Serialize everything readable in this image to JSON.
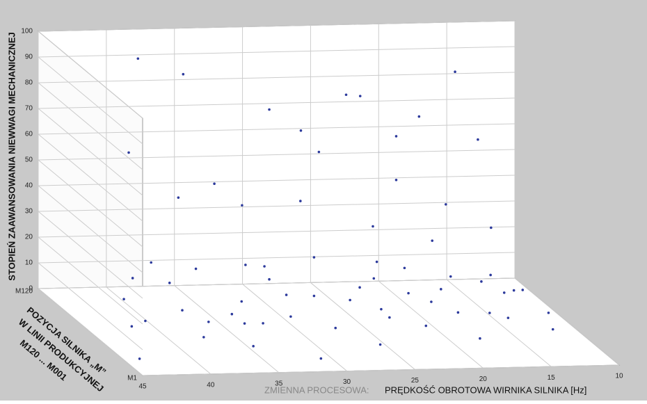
{
  "chart_data": {
    "type": "scatter3d",
    "zlabel": "STOPIEŃ ZAAWANSOWANIA NIEWWAGI MECHANICZNEJ",
    "ylabel": [
      "POZYCJA SILNIKA „M”",
      "W LINII PRODUKCYJNEJ",
      "M120 ... M001"
    ],
    "xlabel_prefix": "ZMIENNA PROCESOWA:",
    "xlabel": "PRĘDKOŚĆ OBROTOWA WIRNIKA SILNIKA [Hz]",
    "xlim": [
      45,
      10
    ],
    "xticks": [
      45,
      40,
      35,
      30,
      25,
      20,
      15,
      10
    ],
    "ylim": [
      120,
      1
    ],
    "yticks": [
      {
        "value": 120,
        "label": "M120"
      },
      {
        "value": 1,
        "label": "M1"
      }
    ],
    "zlim": [
      0,
      100
    ],
    "zticks": [
      0,
      10,
      20,
      30,
      40,
      50,
      60,
      70,
      80,
      90,
      100
    ],
    "grid": true,
    "color": "#2c3a9c",
    "x": [
      44,
      42,
      40,
      38,
      37,
      36,
      35,
      34,
      33,
      32,
      31,
      30,
      29,
      28,
      27,
      26,
      25,
      24,
      23,
      22,
      21,
      20,
      19,
      18,
      17,
      16,
      15,
      14,
      13,
      12,
      40,
      38,
      36,
      33,
      30,
      27,
      24,
      21,
      18,
      15,
      39,
      36,
      34,
      31,
      28,
      26,
      23,
      20,
      17,
      14,
      41,
      37,
      35,
      30,
      25,
      22,
      19,
      16,
      13,
      12,
      38,
      35,
      29,
      27,
      24,
      22,
      20,
      18,
      16,
      14
    ],
    "y": [
      20,
      60,
      100,
      40,
      80,
      110,
      30,
      70,
      50,
      90,
      15,
      65,
      105,
      45,
      85,
      25,
      75,
      55,
      95,
      35,
      110,
      60,
      20,
      80,
      40,
      100,
      50,
      70,
      30,
      90,
      90,
      100,
      80,
      70,
      95,
      85,
      60,
      75,
      90,
      70,
      110,
      100,
      90,
      105,
      85,
      95,
      80,
      100,
      90,
      85,
      60,
      50,
      40,
      70,
      30,
      55,
      45,
      65,
      35,
      80,
      115,
      110,
      105,
      100,
      95,
      110,
      100,
      105,
      95,
      100
    ],
    "z": [
      1,
      2,
      1,
      3,
      2,
      4,
      2,
      3,
      5,
      2,
      1,
      3,
      6,
      4,
      5,
      3,
      6,
      8,
      5,
      7,
      4,
      9,
      6,
      8,
      10,
      7,
      5,
      9,
      6,
      4,
      12,
      15,
      18,
      22,
      14,
      20,
      25,
      18,
      24,
      16,
      55,
      40,
      48,
      35,
      42,
      58,
      33,
      45,
      38,
      30,
      4,
      6,
      8,
      10,
      12,
      14,
      9,
      15,
      11,
      7,
      90,
      85,
      72,
      65,
      80,
      75,
      62,
      68,
      88,
      60
    ]
  }
}
